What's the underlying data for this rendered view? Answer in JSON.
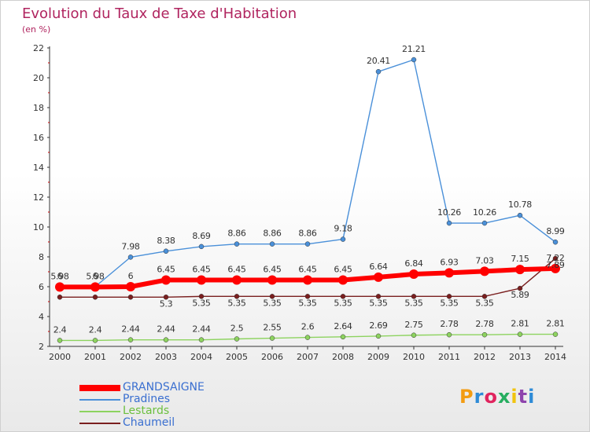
{
  "page": {
    "title": "Evolution du Taux de Taxe d'Habitation",
    "subtitle": "(en %)",
    "logo": "Proxiti",
    "logo_colors": [
      "#f39c12",
      "#2e8bd7",
      "#e0245e",
      "#27ae60",
      "#f1c40f",
      "#8e44ad",
      "#2e8bd7"
    ]
  },
  "chart_data": {
    "type": "line",
    "title": "Evolution du Taux de Taxe d'Habitation",
    "subtitle": "(en %)",
    "xlabel": "",
    "ylabel": "",
    "x": [
      "2000",
      "2001",
      "2002",
      "2003",
      "2004",
      "2005",
      "2006",
      "2007",
      "2008",
      "2009",
      "2010",
      "2011",
      "2012",
      "2013",
      "2014"
    ],
    "ylim": [
      2,
      22
    ],
    "yticks": [
      "2",
      "4",
      "6",
      "8",
      "10",
      "12",
      "14",
      "16",
      "18",
      "20",
      "22"
    ],
    "grid": false,
    "legend_position": "bottom-left",
    "series": [
      {
        "name": "GRANDSAIGNE",
        "color": "#ff0000",
        "values": [
          5.98,
          5.98,
          6,
          6.45,
          6.45,
          6.45,
          6.45,
          6.45,
          6.45,
          6.64,
          6.84,
          6.93,
          7.03,
          7.15,
          7.22
        ],
        "labels": [
          "5.98",
          "5.98",
          "6",
          "6.45",
          "6.45",
          "6.45",
          "6.45",
          "6.45",
          "6.45",
          "6.64",
          "6.84",
          "6.93",
          "7.03",
          "7.15",
          "7.22"
        ]
      },
      {
        "name": "Pradines",
        "color": "#4a90d9",
        "values": [
          6,
          6,
          7.98,
          8.38,
          8.69,
          8.86,
          8.86,
          8.86,
          9.18,
          20.41,
          21.21,
          10.26,
          10.26,
          10.78,
          8.99
        ],
        "labels": [
          "6",
          "6",
          "7.98",
          "8.38",
          "8.69",
          "8.86",
          "8.86",
          "8.86",
          "9.18",
          "20.41",
          "21.21",
          "10.26",
          "10.26",
          "10.78",
          "8.99"
        ]
      },
      {
        "name": "Lestards",
        "color": "#8dd35f",
        "values": [
          2.4,
          2.4,
          2.44,
          2.44,
          2.44,
          2.5,
          2.55,
          2.6,
          2.64,
          2.69,
          2.75,
          2.78,
          2.78,
          2.81,
          2.81
        ],
        "labels": [
          "2.4",
          "2.4",
          "2.44",
          "2.44",
          "2.44",
          "2.5",
          "2.55",
          "2.6",
          "2.64",
          "2.69",
          "2.75",
          "2.78",
          "2.78",
          "2.81",
          "2.81"
        ]
      },
      {
        "name": "Chaumeil",
        "color": "#7a1f1f",
        "values": [
          5.3,
          5.3,
          5.3,
          5.3,
          5.35,
          5.35,
          5.35,
          5.35,
          5.35,
          5.35,
          5.35,
          5.35,
          5.35,
          5.89,
          7.89
        ],
        "labels": [
          "",
          "",
          "",
          "5.3",
          "5.35",
          "5.35",
          "5.35",
          "5.35",
          "5.35",
          "5.35",
          "5.35",
          "5.35",
          "5.35",
          "5.89",
          "7.89"
        ]
      }
    ]
  }
}
